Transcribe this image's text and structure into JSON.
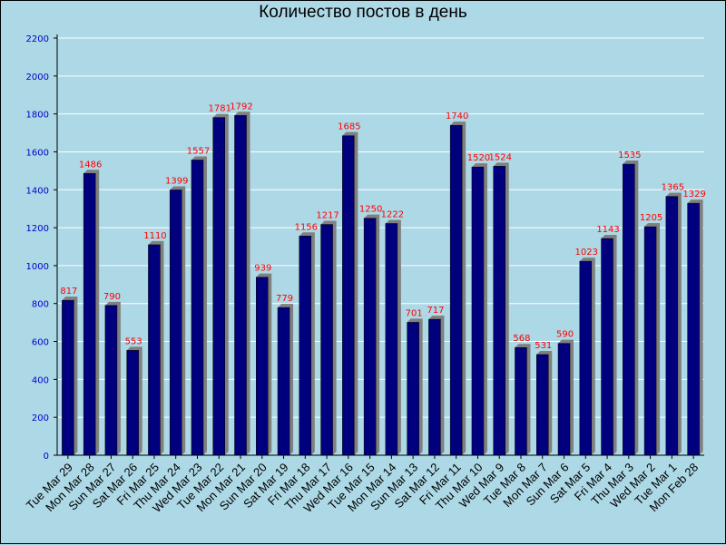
{
  "chart_data": {
    "type": "bar",
    "title": "Количество постов в день",
    "xlabel": "",
    "ylabel": "",
    "ylim": [
      0,
      2200
    ],
    "yticks": [
      0,
      200,
      400,
      600,
      800,
      1000,
      1200,
      1400,
      1600,
      1800,
      2000,
      2200
    ],
    "grid": true,
    "categories": [
      "Tue Mar 29",
      "Mon Mar 28",
      "Sun Mar 27",
      "Sat Mar 26",
      "Fri Mar 25",
      "Thu Mar 24",
      "Wed Mar 23",
      "Tue Mar 22",
      "Mon Mar 21",
      "Sun Mar 20",
      "Sat Mar 19",
      "Fri Mar 18",
      "Thu Mar 17",
      "Wed Mar 16",
      "Tue Mar 15",
      "Mon Mar 14",
      "Sun Mar 13",
      "Sat Mar 12",
      "Fri Mar 11",
      "Thu Mar 10",
      "Wed Mar 9",
      "Tue Mar 8",
      "Mon Mar 7",
      "Sun Mar 6",
      "Sat Mar 5",
      "Fri Mar 4",
      "Thu Mar 3",
      "Wed Mar 2",
      "Tue Mar 1",
      "Mon Feb 28"
    ],
    "values": [
      817,
      1486,
      790,
      553,
      1110,
      1399,
      1557,
      1781,
      1792,
      939,
      779,
      1156,
      1217,
      1685,
      1250,
      1222,
      701,
      717,
      1740,
      1520,
      1524,
      568,
      531,
      590,
      1023,
      1143,
      1535,
      1205,
      1365,
      1329
    ],
    "colors": {
      "background": "#add8e6",
      "bar": "#00007f",
      "bar_shadow": "#808080",
      "data_label": "#ff0000",
      "y_tick": "#0000cd",
      "grid": "#ffffff"
    }
  }
}
